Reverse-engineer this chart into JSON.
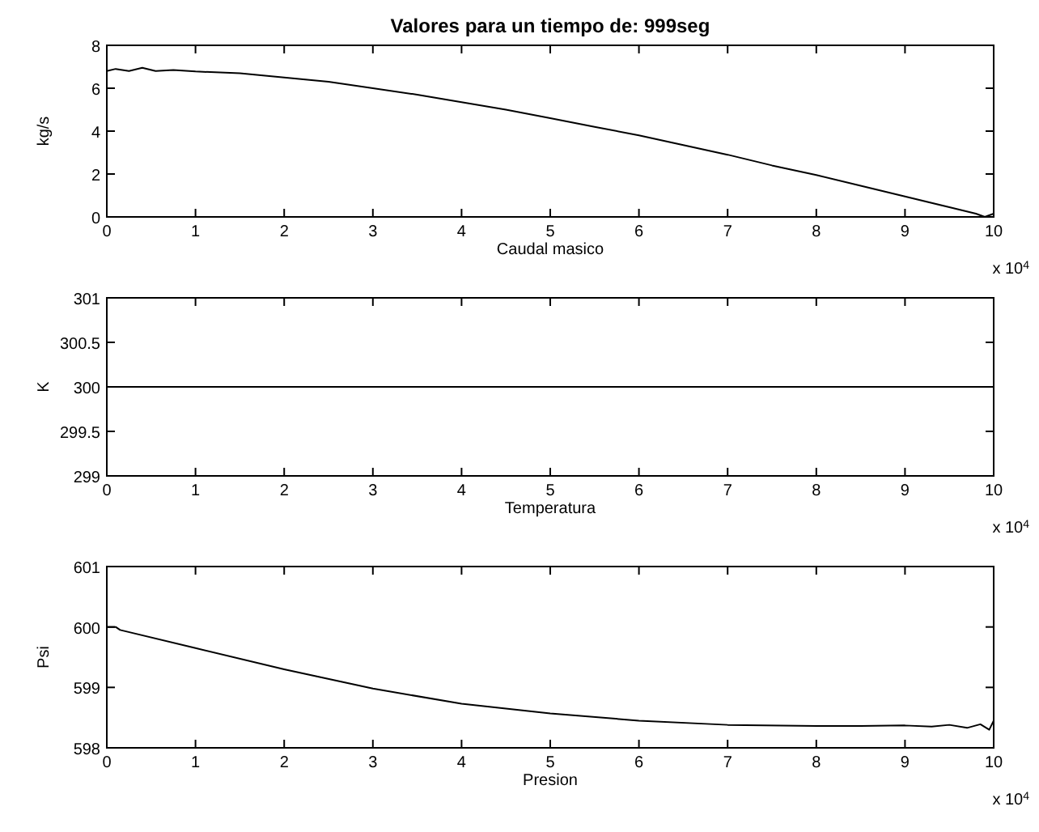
{
  "chart_data": [
    {
      "type": "line",
      "title": "Valores para un tiempo de: 999seg",
      "xlabel": "Caudal masico",
      "ylabel": "kg/s",
      "annotations": [
        "x 10$^{4}$"
      ],
      "grid": false,
      "marker": "none",
      "line_style": "solid",
      "xlim": [
        0,
        10
      ],
      "xticks": [
        0,
        1,
        2,
        3,
        4,
        5,
        6,
        7,
        8,
        9,
        10
      ],
      "ylim": [
        0,
        8
      ],
      "yticks": [
        0,
        2,
        4,
        6,
        8
      ],
      "series": [
        {
          "color": "#000000",
          "x": [
            0,
            0.1,
            0.25,
            0.4,
            0.55,
            0.75,
            1,
            1.5,
            2,
            2.5,
            3,
            3.5,
            4,
            4.5,
            5,
            5.5,
            6,
            6.5,
            7,
            7.5,
            8,
            8.5,
            9,
            9.5,
            9.8,
            9.9,
            10
          ],
          "values": [
            6.8,
            6.9,
            6.8,
            6.95,
            6.8,
            6.85,
            6.78,
            6.7,
            6.5,
            6.3,
            6.0,
            5.7,
            5.35,
            5.0,
            4.6,
            4.2,
            3.8,
            3.35,
            2.9,
            2.4,
            1.95,
            1.45,
            0.95,
            0.45,
            0.15,
            0.0,
            0.15
          ]
        }
      ]
    },
    {
      "type": "line",
      "xlabel": "Temperatura",
      "ylabel": "K",
      "annotations": [
        "x 10$^{4}$"
      ],
      "grid": false,
      "marker": "none",
      "line_style": "solid",
      "xlim": [
        0,
        10
      ],
      "xticks": [
        0,
        1,
        2,
        3,
        4,
        5,
        6,
        7,
        8,
        9,
        10
      ],
      "ylim": [
        299,
        301
      ],
      "yticks": [
        299,
        299.5,
        300,
        300.5,
        301
      ],
      "series": [
        {
          "color": "#000000",
          "x": [
            0,
            10
          ],
          "values": [
            300,
            300
          ]
        }
      ]
    },
    {
      "type": "line",
      "xlabel": "Presion",
      "ylabel": "Psi",
      "annotations": [
        "x 10$^{4}$"
      ],
      "grid": false,
      "marker": "none",
      "line_style": "solid",
      "xlim": [
        0,
        10
      ],
      "xticks": [
        0,
        1,
        2,
        3,
        4,
        5,
        6,
        7,
        8,
        9,
        10
      ],
      "ylim": [
        598,
        601
      ],
      "yticks": [
        598,
        599,
        600,
        601
      ],
      "series": [
        {
          "color": "#000000",
          "x": [
            0,
            0.1,
            0.15,
            1,
            2,
            3,
            4,
            5,
            6,
            7,
            8,
            8.5,
            9,
            9.3,
            9.5,
            9.7,
            9.85,
            9.95,
            10
          ],
          "values": [
            600.0,
            600.0,
            599.95,
            599.65,
            599.3,
            598.98,
            598.73,
            598.57,
            598.45,
            598.38,
            598.36,
            598.36,
            598.37,
            598.35,
            598.38,
            598.33,
            598.39,
            598.3,
            598.45
          ]
        }
      ]
    }
  ]
}
